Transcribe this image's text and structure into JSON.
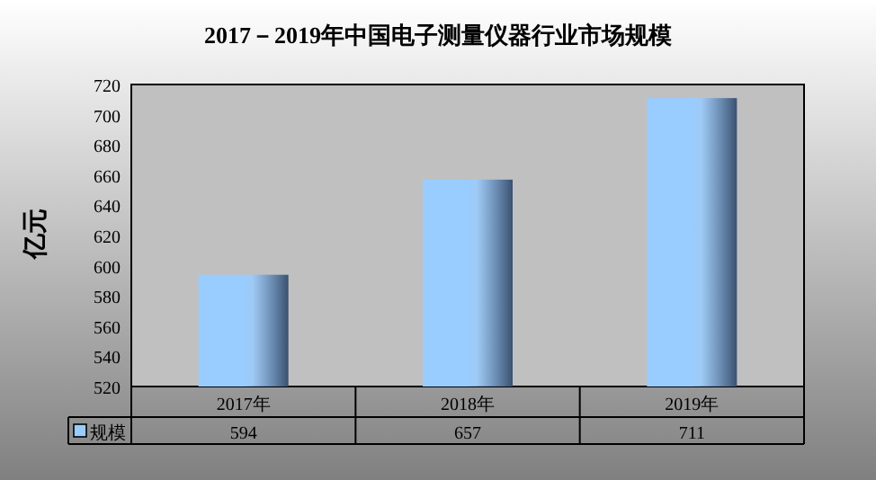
{
  "chart_data": {
    "type": "bar",
    "title": "2017－2019年中国电子测量仪器行业市场规模",
    "ylabel": "亿元",
    "categories": [
      "2017年",
      "2018年",
      "2019年"
    ],
    "series": [
      {
        "name": "规模",
        "color": "#99ccff",
        "values": [
          594,
          657,
          711
        ]
      }
    ],
    "ylim": [
      520,
      720
    ],
    "yticks": [
      520,
      540,
      560,
      580,
      600,
      620,
      640,
      660,
      680,
      700,
      720
    ],
    "data_labels": true,
    "grid": false,
    "legend": "bottom"
  }
}
